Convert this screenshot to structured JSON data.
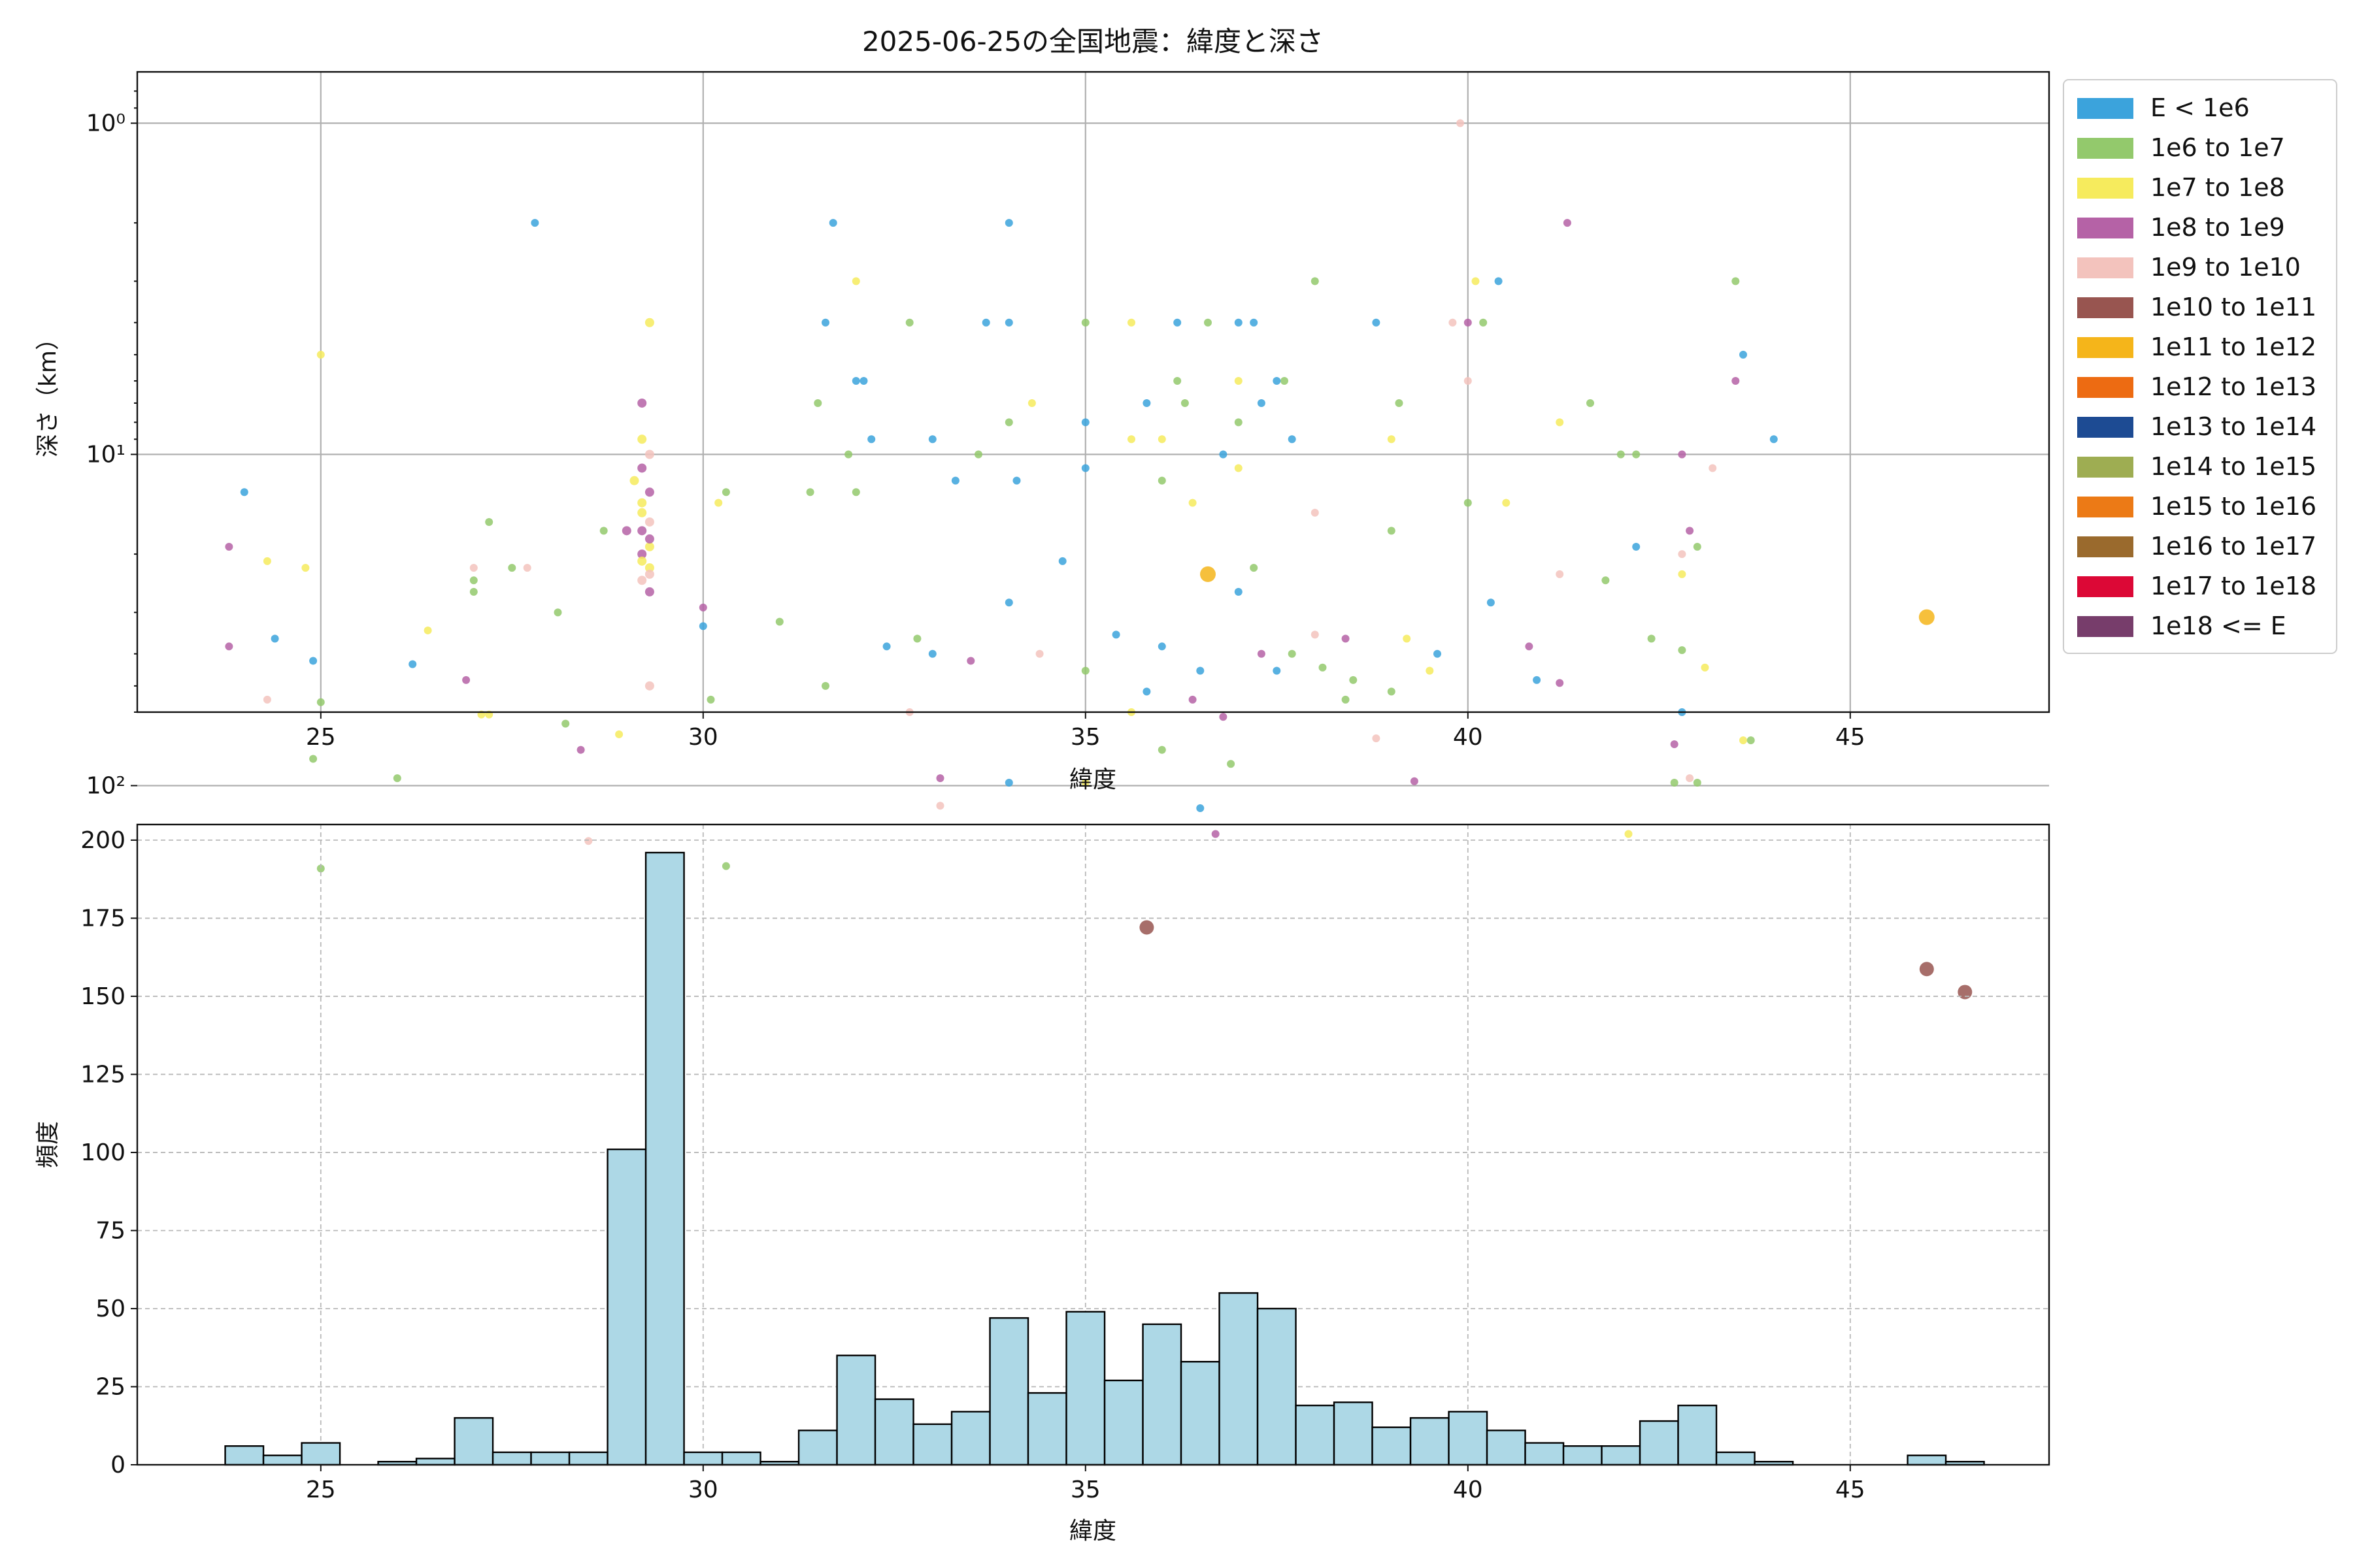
{
  "chart_data": [
    {
      "type": "scatter",
      "title": "2025-06-25の全国地震：緯度と深さ",
      "xlabel": "緯度",
      "ylabel": "深さ（km）",
      "xlim": [
        22.6,
        47.6
      ],
      "ylim_log": [
        0.7,
        60
      ],
      "y_scale": "log",
      "y_inverted": true,
      "grid": true,
      "x_ticks": [
        25,
        30,
        35,
        40,
        45
      ],
      "y_ticks": [
        1,
        10,
        100
      ],
      "y_ticklabels": [
        "10⁰",
        "10¹",
        "10²"
      ],
      "legend_position": "outside-right",
      "legend": [
        {
          "label": "E < 1e6",
          "color": "#3ba3dc"
        },
        {
          "label": "1e6 to 1e7",
          "color": "#93c96c"
        },
        {
          "label": "1e7 to 1e8",
          "color": "#f6eb5d"
        },
        {
          "label": "1e8 to 1e9",
          "color": "#b562a6"
        },
        {
          "label": "1e9 to 1e10",
          "color": "#f3c3bd"
        },
        {
          "label": "1e10 to 1e11",
          "color": "#985550"
        },
        {
          "label": "1e11 to 1e12",
          "color": "#f5b51a"
        },
        {
          "label": "1e12 to 1e13",
          "color": "#ed6b12"
        },
        {
          "label": "1e13 to 1e14",
          "color": "#1d4b93"
        },
        {
          "label": "1e14 to 1e15",
          "color": "#9ead52"
        },
        {
          "label": "1e15 to 1e16",
          "color": "#ec7a16"
        },
        {
          "label": "1e16 to 1e17",
          "color": "#9a6a2d"
        },
        {
          "label": "1e17 to 1e18",
          "color": "#dc0836"
        },
        {
          "label": "1e18 <= E",
          "color": "#773d6b"
        }
      ],
      "points": [
        [
          31.7,
          2
        ],
        [
          34.0,
          2
        ],
        [
          27.8,
          2
        ],
        [
          41.3,
          2
        ],
        [
          39.9,
          1
        ],
        [
          38.0,
          3
        ],
        [
          43.5,
          3
        ],
        [
          40.1,
          3
        ],
        [
          40.4,
          3
        ],
        [
          32.0,
          3
        ],
        [
          31.6,
          4
        ],
        [
          32.7,
          4
        ],
        [
          33.7,
          4
        ],
        [
          34.0,
          4
        ],
        [
          35.0,
          4
        ],
        [
          35.6,
          4
        ],
        [
          36.2,
          4
        ],
        [
          36.6,
          4
        ],
        [
          37.0,
          4
        ],
        [
          37.2,
          4
        ],
        [
          38.8,
          4
        ],
        [
          40.0,
          4
        ],
        [
          39.8,
          4
        ],
        [
          40.2,
          4
        ],
        [
          29.3,
          4
        ],
        [
          25.0,
          5
        ],
        [
          43.6,
          5
        ],
        [
          43.5,
          6
        ],
        [
          40.0,
          6
        ],
        [
          37.6,
          6
        ],
        [
          32.1,
          6
        ],
        [
          32.0,
          6
        ],
        [
          36.2,
          6
        ],
        [
          37.0,
          6
        ],
        [
          37.5,
          6
        ],
        [
          39.1,
          7
        ],
        [
          41.6,
          7
        ],
        [
          41.2,
          8
        ],
        [
          31.5,
          7
        ],
        [
          34.3,
          7
        ],
        [
          35.8,
          7
        ],
        [
          36.3,
          7
        ],
        [
          37.3,
          7
        ],
        [
          29.2,
          7
        ],
        [
          44.0,
          9
        ],
        [
          42.8,
          10
        ],
        [
          43.2,
          11
        ],
        [
          42.2,
          10
        ],
        [
          42.0,
          10
        ],
        [
          39.0,
          9
        ],
        [
          37.0,
          8
        ],
        [
          36.0,
          9
        ],
        [
          35.0,
          8
        ],
        [
          34.0,
          8
        ],
        [
          33.0,
          9
        ],
        [
          32.2,
          9
        ],
        [
          31.9,
          10
        ],
        [
          35.6,
          9
        ],
        [
          36.8,
          10
        ],
        [
          33.6,
          10
        ],
        [
          37.7,
          9
        ],
        [
          29.2,
          9
        ],
        [
          29.3,
          10
        ],
        [
          29.2,
          11
        ],
        [
          29.1,
          12
        ],
        [
          29.3,
          13
        ],
        [
          29.2,
          15
        ],
        [
          29.3,
          16
        ],
        [
          29.2,
          17
        ],
        [
          29.3,
          19
        ],
        [
          29.2,
          20
        ],
        [
          29.3,
          22
        ],
        [
          29.2,
          24
        ],
        [
          29.3,
          26
        ],
        [
          29.2,
          14
        ],
        [
          29.3,
          18
        ],
        [
          29.2,
          21
        ],
        [
          29.3,
          23
        ],
        [
          34.1,
          12
        ],
        [
          35.0,
          11
        ],
        [
          36.0,
          12
        ],
        [
          37.0,
          11
        ],
        [
          33.3,
          12
        ],
        [
          31.4,
          13
        ],
        [
          30.3,
          13
        ],
        [
          30.2,
          14
        ],
        [
          32.0,
          13
        ],
        [
          36.4,
          14
        ],
        [
          38.0,
          15
        ],
        [
          39.0,
          17
        ],
        [
          40.0,
          14
        ],
        [
          40.5,
          14
        ],
        [
          42.2,
          19
        ],
        [
          42.9,
          17
        ],
        [
          42.8,
          20
        ],
        [
          43.0,
          19
        ],
        [
          27.2,
          16
        ],
        [
          24.3,
          21
        ],
        [
          24.0,
          13
        ],
        [
          23.8,
          19
        ],
        [
          27.0,
          22
        ],
        [
          27.0,
          24
        ],
        [
          27.0,
          26
        ],
        [
          24.8,
          22
        ],
        [
          24.9,
          42
        ],
        [
          23.8,
          38
        ],
        [
          24.3,
          55
        ],
        [
          25.0,
          56
        ],
        [
          24.9,
          83
        ],
        [
          26.4,
          34
        ],
        [
          26.2,
          43
        ],
        [
          26.9,
          48
        ],
        [
          27.7,
          22
        ],
        [
          28.1,
          30
        ],
        [
          28.2,
          65
        ],
        [
          27.2,
          61
        ],
        [
          24.4,
          36
        ],
        [
          30.0,
          29
        ],
        [
          29.0,
          17
        ],
        [
          28.7,
          17
        ],
        [
          31.0,
          32
        ],
        [
          32.4,
          38
        ],
        [
          33.0,
          40
        ],
        [
          33.5,
          42
        ],
        [
          34.4,
          40
        ],
        [
          35.0,
          45
        ],
        [
          35.4,
          35
        ],
        [
          36.0,
          38
        ],
        [
          36.5,
          45
        ],
        [
          37.3,
          40
        ],
        [
          38.0,
          35
        ],
        [
          38.5,
          48
        ],
        [
          39.0,
          52
        ],
        [
          39.5,
          45
        ],
        [
          40.3,
          28
        ],
        [
          40.8,
          38
        ],
        [
          41.2,
          23
        ],
        [
          41.8,
          24
        ],
        [
          42.4,
          36
        ],
        [
          43.1,
          44
        ],
        [
          42.8,
          60
        ],
        [
          42.7,
          75
        ],
        [
          42.9,
          95
        ],
        [
          43.0,
          98
        ],
        [
          42.7,
          98
        ],
        [
          43.6,
          73
        ],
        [
          40.9,
          48
        ],
        [
          39.3,
          97
        ],
        [
          38.8,
          72
        ],
        [
          36.9,
          86
        ],
        [
          36.0,
          78
        ],
        [
          35.0,
          98
        ],
        [
          34.0,
          98
        ],
        [
          33.1,
          95
        ],
        [
          32.7,
          60
        ],
        [
          31.6,
          50
        ],
        [
          30.1,
          55
        ],
        [
          29.3,
          50
        ],
        [
          30.0,
          33
        ],
        [
          28.4,
          78
        ],
        [
          28.5,
          147
        ],
        [
          25.0,
          178
        ],
        [
          26.0,
          95
        ],
        [
          28.9,
          70
        ],
        [
          46.0,
          31
        ],
        [
          46.0,
          358
        ],
        [
          46.5,
          420
        ],
        [
          43.7,
          73
        ],
        [
          42.8,
          39
        ],
        [
          42.8,
          23
        ],
        [
          35.8,
          268
        ],
        [
          36.4,
          55
        ],
        [
          36.6,
          23
        ],
        [
          37.2,
          22
        ],
        [
          37.7,
          40
        ],
        [
          42.1,
          140
        ],
        [
          36.5,
          117
        ],
        [
          36.7,
          140
        ],
        [
          33.1,
          115
        ],
        [
          30.3,
          175
        ],
        [
          27.5,
          22
        ],
        [
          27.1,
          61
        ],
        [
          37.5,
          45
        ],
        [
          38.4,
          36
        ],
        [
          34.7,
          21
        ],
        [
          32.8,
          36
        ],
        [
          34.0,
          28
        ],
        [
          35.6,
          60
        ],
        [
          35.8,
          52
        ],
        [
          36.8,
          62
        ],
        [
          37.0,
          26
        ],
        [
          38.1,
          44
        ],
        [
          38.4,
          55
        ],
        [
          39.2,
          36
        ],
        [
          39.6,
          40
        ],
        [
          41.2,
          49
        ]
      ]
    },
    {
      "type": "bar",
      "xlabel": "緯度",
      "ylabel": "頻度",
      "xlim": [
        22.6,
        47.6
      ],
      "ylim": [
        0,
        205
      ],
      "x_ticks": [
        25,
        30,
        35,
        40,
        45
      ],
      "y_ticks": [
        0,
        25,
        50,
        75,
        100,
        125,
        150,
        175,
        200
      ],
      "grid": true,
      "bar_color": "#add8e6",
      "edge_color": "#000000",
      "bin_edges": [
        23.75,
        24.25,
        24.75,
        25.25,
        25.75,
        26.25,
        26.75,
        27.25,
        27.75,
        28.25,
        28.75,
        29.25,
        29.75,
        30.25,
        30.75,
        31.25,
        31.75,
        32.25,
        32.75,
        33.25,
        33.75,
        34.25,
        34.75,
        35.25,
        35.75,
        36.25,
        36.75,
        37.25,
        37.75,
        38.25,
        38.75,
        39.25,
        39.75,
        40.25,
        40.75,
        41.25,
        41.75,
        42.25,
        42.75,
        43.25,
        43.75,
        44.25,
        44.75,
        45.25,
        45.75,
        46.25,
        46.75
      ],
      "counts": [
        6,
        3,
        7,
        0,
        1,
        2,
        15,
        4,
        4,
        4,
        101,
        196,
        4,
        4,
        1,
        11,
        35,
        21,
        13,
        17,
        47,
        23,
        49,
        27,
        45,
        33,
        55,
        50,
        19,
        20,
        12,
        15,
        17,
        11,
        7,
        6,
        6,
        14,
        19,
        4,
        1,
        0,
        0,
        0,
        3,
        1
      ]
    }
  ]
}
